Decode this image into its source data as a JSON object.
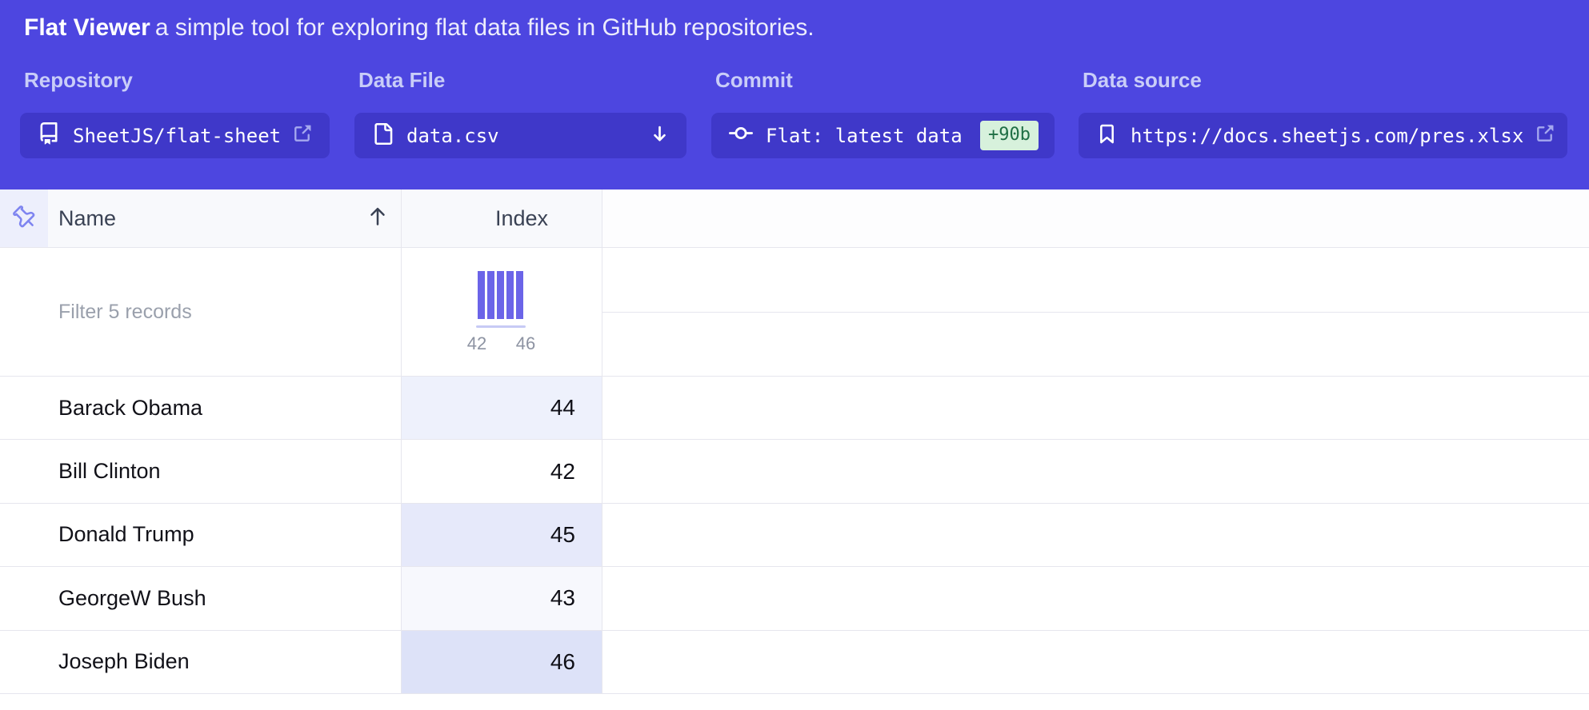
{
  "header": {
    "title": "Flat Viewer",
    "subtitle": "a simple tool for exploring flat data files in GitHub repositories.",
    "fields": [
      {
        "label": "Repository",
        "value": "SheetJS/flat-sheet",
        "icon": "repo-book-icon",
        "trailing_icon": "external-link-icon"
      },
      {
        "label": "Data File",
        "value": "data.csv",
        "icon": "file-icon",
        "trailing_icon": "arrow-down-icon"
      },
      {
        "label": "Commit",
        "value": "Flat: latest data",
        "icon": "commit-icon",
        "badge": "+90b"
      },
      {
        "label": "Data source",
        "value": "https://docs.sheetjs.com/pres.xlsx",
        "icon": "bookmark-icon",
        "trailing_icon": "external-link-icon"
      }
    ]
  },
  "table": {
    "columns": [
      {
        "label": "Name",
        "sort": "ascending"
      },
      {
        "label": "Index"
      }
    ],
    "filter_placeholder": "Filter 5 records",
    "histogram": {
      "type": "bar",
      "bins": [
        1,
        1,
        1,
        1,
        1
      ],
      "min_label": "42",
      "max_label": "46"
    },
    "rows": [
      {
        "name": "Barack Obama",
        "index": 44
      },
      {
        "name": "Bill Clinton",
        "index": 42
      },
      {
        "name": "Donald Trump",
        "index": 45
      },
      {
        "name": "GeorgeW Bush",
        "index": 43
      },
      {
        "name": "Joseph Biden",
        "index": 46
      }
    ]
  },
  "colors": {
    "header_bg": "#4d46e0",
    "button_bg": "#3f38c9",
    "badge_bg": "#d7f1dc",
    "badge_text": "#1f6f45",
    "histogram_bar": "#6b64e8",
    "index_scale_min_bg": "#ffffff",
    "index_scale_max_bg": "#dde2f8"
  }
}
